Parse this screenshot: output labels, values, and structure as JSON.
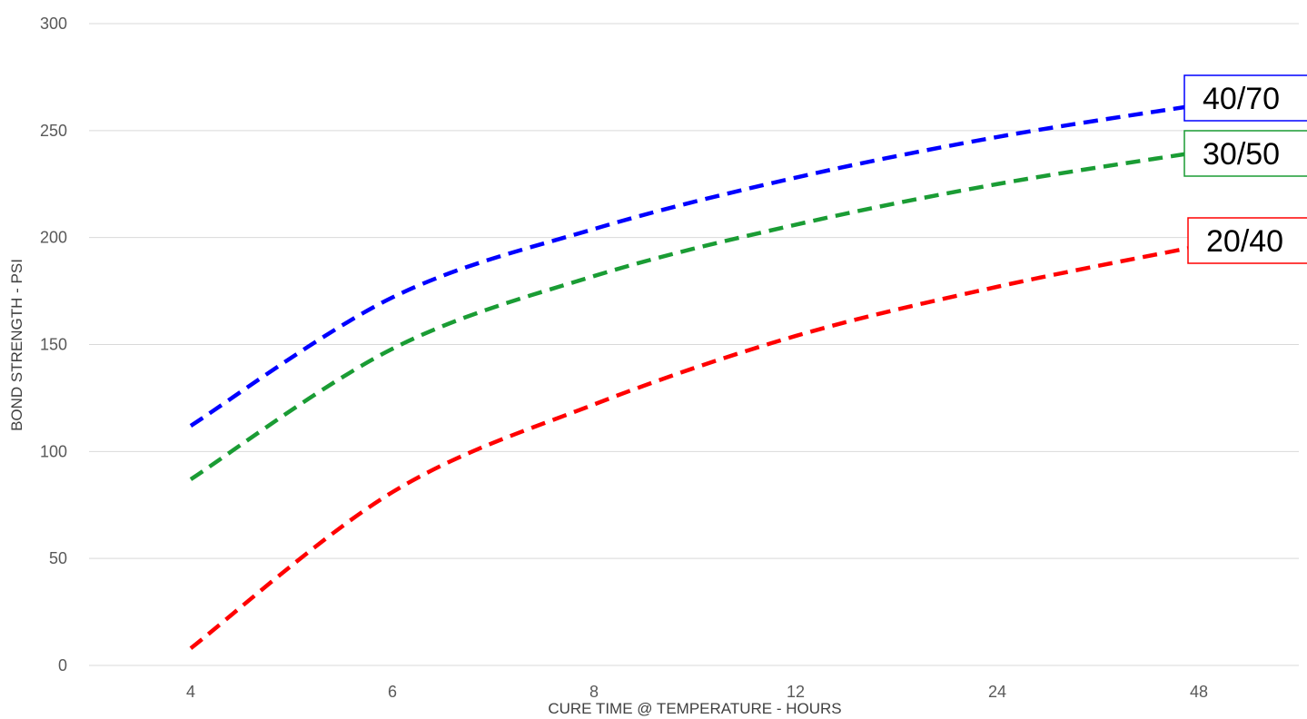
{
  "chart_data": {
    "type": "line",
    "x": [
      "4",
      "6",
      "8",
      "12",
      "24",
      "48"
    ],
    "ylabel": "BOND STRENGTH - PSI",
    "xlabel": "CURE TIME @ TEMPERATURE - HOURS",
    "yticks": [
      "0",
      "50",
      "100",
      "150",
      "200",
      "250",
      "300"
    ],
    "ylim": [
      0,
      300
    ],
    "grid": true,
    "legend": "labels-at-line-ends",
    "series": [
      {
        "name": "40/70",
        "color": "#0000ff",
        "values": [
          112,
          172,
          204,
          228,
          247,
          262
        ]
      },
      {
        "name": "30/50",
        "color": "#1a9c34",
        "values": [
          87,
          148,
          182,
          206,
          225,
          240
        ]
      },
      {
        "name": "20/40",
        "color": "#ff0000",
        "values": [
          8,
          81,
          122,
          154,
          177,
          196
        ]
      }
    ]
  }
}
